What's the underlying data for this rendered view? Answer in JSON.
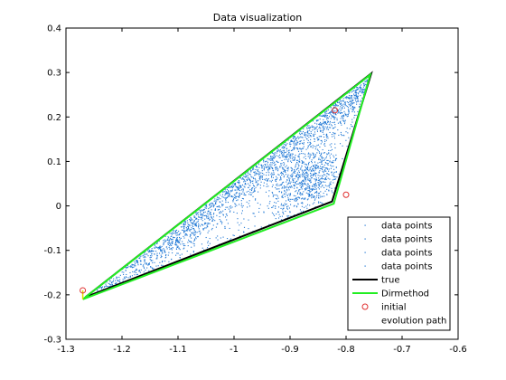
{
  "chart_data": {
    "type": "scatter",
    "title": "Data visualization",
    "xlabel": "",
    "ylabel": "",
    "xlim": [
      -1.3,
      -0.6
    ],
    "ylim": [
      -0.3,
      0.4
    ],
    "xticks": [
      -1.3,
      -1.2,
      -1.1,
      -1.0,
      -0.9,
      -0.8,
      -0.7,
      -0.6
    ],
    "xtick_labels": [
      "-1.3",
      "-1.2",
      "-1.1",
      "-1",
      "-0.9",
      "-0.8",
      "-0.7",
      "-0.6"
    ],
    "yticks": [
      -0.3,
      -0.2,
      -0.1,
      0,
      0.1,
      0.2,
      0.3,
      0.4
    ],
    "ytick_labels": [
      "-0.3",
      "-0.2",
      "-0.1",
      "0",
      "0.1",
      "0.2",
      "0.3",
      "0.4"
    ],
    "grid": false,
    "legend_position": "bottom-right",
    "colors": {
      "data_points": "#1f77d4",
      "true": "#000000",
      "dirmethod": "#22ee22",
      "initial": "#e03030",
      "evolution_path": "#e0e000"
    },
    "true_polygon": [
      [
        -1.265,
        -0.205
      ],
      [
        -0.755,
        0.298
      ],
      [
        -0.825,
        0.01
      ]
    ],
    "dirmethod_polygon": [
      [
        -1.27,
        -0.21
      ],
      [
        -0.757,
        0.295
      ],
      [
        -0.822,
        0.005
      ]
    ],
    "initial_points": [
      [
        -1.27,
        -0.19
      ],
      [
        -0.82,
        0.215
      ],
      [
        -0.8,
        0.025
      ]
    ],
    "evolution_path": [
      [
        -1.27,
        -0.19
      ],
      [
        -1.27,
        -0.21
      ]
    ],
    "legend": [
      {
        "label": "data points",
        "marker": "dot"
      },
      {
        "label": "data points",
        "marker": "dot"
      },
      {
        "label": "data points",
        "marker": "dot"
      },
      {
        "label": "data points",
        "marker": "dot"
      },
      {
        "label": "true",
        "marker": "line-black"
      },
      {
        "label": "Dirmethod",
        "marker": "line-green"
      },
      {
        "label": "initial",
        "marker": "circle"
      },
      {
        "label": "evolution path",
        "marker": "none"
      }
    ]
  }
}
